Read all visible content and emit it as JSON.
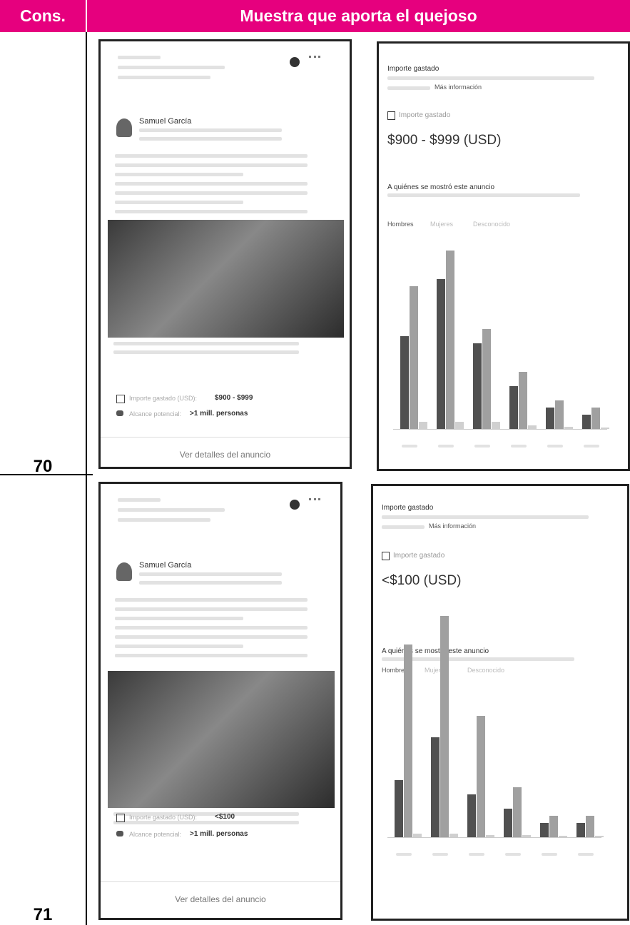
{
  "header": {
    "cons": "Cons.",
    "sample": "Muestra que aporta el quejoso"
  },
  "rows": [
    {
      "cons": "70",
      "ad": {
        "advertiser": "Samuel García",
        "spend_label": "Importe gastado (USD):",
        "spend": "$900 - $999",
        "reach_label": "Alcance potencial:",
        "reach": ">1 mill. personas",
        "details": "Ver detalles del anuncio"
      },
      "insights": {
        "title": "Importe gastado",
        "more": "Más información",
        "spend_label": "Importe gastado",
        "spend": "$900 - $999 (USD)",
        "audience_title": "A quiénes se mostró este anuncio",
        "tabs": [
          "Hombres",
          "Mujeres",
          "Desconocido"
        ],
        "bars": [
          {
            "color": "#505050",
            "values": [
              13,
              21,
              12,
              6,
              3,
              2
            ]
          },
          {
            "color": "#a0a0a0",
            "values": [
              20,
              25,
              14,
              8,
              4,
              3
            ]
          },
          {
            "color": "#d0d0d0",
            "values": [
              1,
              1,
              1,
              0.5,
              0.3,
              0.2
            ]
          }
        ]
      }
    },
    {
      "cons": "71",
      "ad": {
        "advertiser": "Samuel García",
        "spend_label": "Importe gastado (USD):",
        "spend": "<$100",
        "reach_label": "Alcance potencial:",
        "reach": ">1 mill. personas",
        "details": "Ver detalles del anuncio"
      },
      "insights": {
        "title": "Importe gastado",
        "more": "Más información",
        "spend_label": "Importe gastado",
        "spend": "<$100 (USD)",
        "audience_title": "A quiénes se mostró este anuncio",
        "tabs": [
          "Hombres",
          "Mujeres",
          "Desconocido"
        ],
        "bars": [
          {
            "color": "#505050",
            "values": [
              8,
              14,
              6,
              4,
              2,
              2
            ]
          },
          {
            "color": "#a0a0a0",
            "values": [
              27,
              31,
              17,
              7,
              3,
              3
            ]
          },
          {
            "color": "#d0d0d0",
            "values": [
              0.5,
              0.5,
              0.3,
              0.3,
              0.2,
              0.2
            ]
          }
        ]
      }
    }
  ]
}
